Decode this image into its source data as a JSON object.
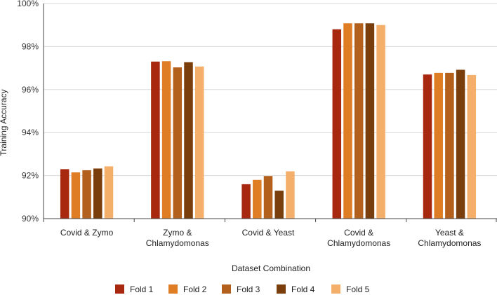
{
  "chart_data": {
    "type": "bar",
    "title": "",
    "xlabel": "Dataset Combination",
    "ylabel": "Training Accuracy",
    "ylim": [
      90,
      100
    ],
    "yticks": [
      90,
      92,
      94,
      96,
      98,
      100
    ],
    "ytick_labels": [
      "90%",
      "92%",
      "94%",
      "96%",
      "98%",
      "100%"
    ],
    "grid": true,
    "legend_position": "bottom",
    "categories": [
      [
        "Covid & Zymo"
      ],
      [
        "Zymo &",
        "Chlamydomonas"
      ],
      [
        "Covid & Yeast"
      ],
      [
        "Covid &",
        "Chlamydomonas"
      ],
      [
        "Yeast &",
        "Chlamydomonas"
      ]
    ],
    "series": [
      {
        "name": "Fold 1",
        "color": "#a8280f",
        "values": [
          92.3,
          97.3,
          91.6,
          98.8,
          96.7
        ]
      },
      {
        "name": "Fold 2",
        "color": "#de7d24",
        "values": [
          92.15,
          97.32,
          91.8,
          99.08,
          96.78
        ]
      },
      {
        "name": "Fold 3",
        "color": "#b3601c",
        "values": [
          92.25,
          97.03,
          91.98,
          99.08,
          96.78
        ]
      },
      {
        "name": "Fold 4",
        "color": "#7a3e0c",
        "values": [
          92.33,
          97.27,
          91.3,
          99.08,
          96.92
        ]
      },
      {
        "name": "Fold 5",
        "color": "#f4b06b",
        "values": [
          92.43,
          97.07,
          92.2,
          99.0,
          96.68
        ]
      }
    ]
  }
}
